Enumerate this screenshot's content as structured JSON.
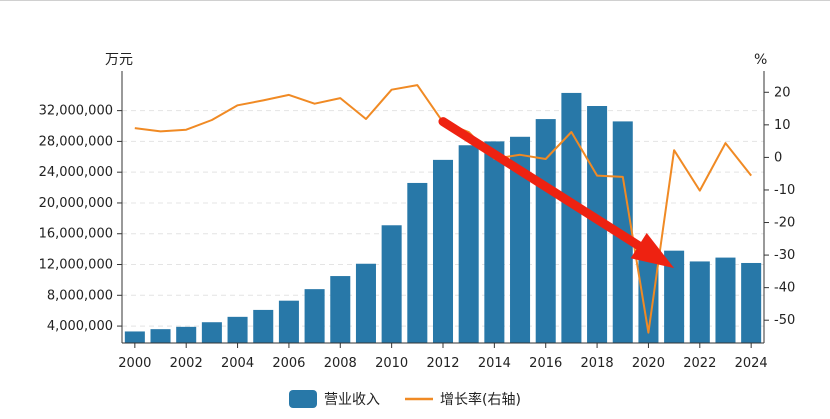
{
  "chart_data": {
    "type": "bar",
    "left_unit": "万元",
    "right_unit": "%",
    "categories": [
      2000,
      2001,
      2002,
      2003,
      2004,
      2005,
      2006,
      2007,
      2008,
      2009,
      2010,
      2011,
      2012,
      2013,
      2014,
      2015,
      2016,
      2017,
      2018,
      2019,
      2020,
      2021,
      2022,
      2023,
      2024
    ],
    "x_tick_labels": [
      "2000",
      "2002",
      "2004",
      "2006",
      "2008",
      "2010",
      "2012",
      "2014",
      "2016",
      "2018",
      "2020",
      "2022",
      "2024"
    ],
    "y_left_ticks": [
      4000000,
      8000000,
      12000000,
      16000000,
      20000000,
      24000000,
      28000000,
      32000000
    ],
    "y_left_tick_labels": [
      "4,000,000",
      "8,000,000",
      "12,000,000",
      "16,000,000",
      "20,000,000",
      "24,000,000",
      "28,000,000",
      "32,000,000"
    ],
    "y_left_range": [
      1800000,
      36500000
    ],
    "y_right_ticks": [
      20,
      10,
      0,
      -10,
      -20,
      -30,
      -40,
      -50
    ],
    "y_right_tick_labels": [
      "20",
      "10",
      "0",
      "-10",
      "-20",
      "-30",
      "-40",
      "-50"
    ],
    "y_right_range": [
      -57,
      25
    ],
    "series": [
      {
        "name": "营业收入",
        "type": "bar",
        "axis": "left",
        "color": "#2878a8",
        "values": [
          3300000,
          3600000,
          3900000,
          4500000,
          5200000,
          6100000,
          7300000,
          8800000,
          10500000,
          12100000,
          17100000,
          22600000,
          25600000,
          27500000,
          28000000,
          28600000,
          30900000,
          34300000,
          32600000,
          30600000,
          14000000,
          13800000,
          12400000,
          12900000,
          12200000
        ]
      },
      {
        "name": "增长率(右轴)",
        "type": "line",
        "axis": "right",
        "color": "#f08a24",
        "values": [
          9.0,
          8.0,
          8.5,
          11.5,
          16.0,
          17.5,
          19.2,
          16.5,
          18.2,
          11.8,
          20.8,
          22.2,
          10.8,
          7.8,
          -0.4,
          0.8,
          -0.5,
          7.8,
          -5.6,
          -6.0,
          -53.8,
          2.2,
          -10.2,
          4.4,
          -5.6
        ]
      }
    ],
    "annotation": {
      "type": "arrow",
      "color": "#ee2211",
      "from": {
        "year": 2012,
        "value": 11
      },
      "to": {
        "year": 2021,
        "value": -34
      }
    },
    "grid": true,
    "legend_position": "bottom"
  }
}
